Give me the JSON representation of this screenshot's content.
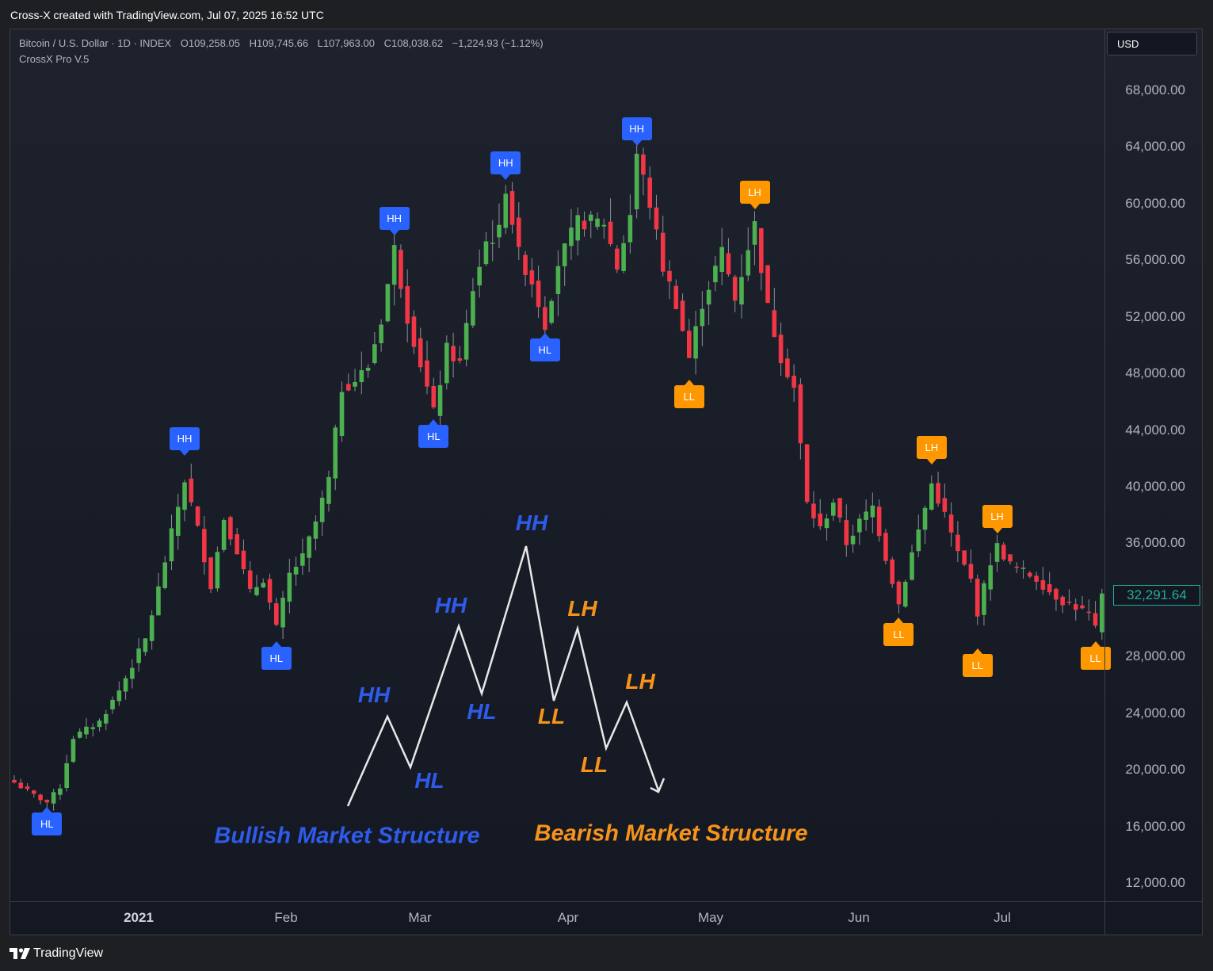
{
  "header": {
    "created_text": "Cross-X created with TradingView.com, Jul 07, 2025 16:52 UTC"
  },
  "legend": {
    "symbol": "Bitcoin / U.S. Dollar · 1D · INDEX",
    "open": "O109,258.05",
    "high": "H109,745.66",
    "low": "L107,963.00",
    "close": "C108,038.62",
    "change": "−1,224.93 (−1.12%)",
    "indicator": "CrossX Pro V.5"
  },
  "price_axis": {
    "currency_button": "USD",
    "last_price": "32,291.64",
    "ticks": [
      "68,000.00",
      "64,000.00",
      "60,000.00",
      "56,000.00",
      "52,000.00",
      "48,000.00",
      "44,000.00",
      "40,000.00",
      "36,000.00",
      "28,000.00",
      "24,000.00",
      "20,000.00",
      "16,000.00",
      "12,000.00"
    ],
    "tick_values": [
      68000,
      64000,
      60000,
      56000,
      52000,
      48000,
      44000,
      40000,
      36000,
      28000,
      24000,
      20000,
      16000,
      12000
    ]
  },
  "time_axis": {
    "labels": [
      "2021",
      "Feb",
      "Mar",
      "Apr",
      "May",
      "Jun",
      "Jul"
    ]
  },
  "markers": [
    {
      "label": "HL",
      "color": "blue",
      "dir": "up",
      "bar": 5,
      "price": 17600
    },
    {
      "label": "HH",
      "color": "blue",
      "dir": "down",
      "bar": 26,
      "price": 41900
    },
    {
      "label": "HL",
      "color": "blue",
      "dir": "up",
      "bar": 40,
      "price": 29300
    },
    {
      "label": "HH",
      "color": "blue",
      "dir": "down",
      "bar": 58,
      "price": 57500
    },
    {
      "label": "HL",
      "color": "blue",
      "dir": "up",
      "bar": 64,
      "price": 45000
    },
    {
      "label": "HH",
      "color": "blue",
      "dir": "down",
      "bar": 75,
      "price": 61400
    },
    {
      "label": "HL",
      "color": "blue",
      "dir": "up",
      "bar": 81,
      "price": 51100
    },
    {
      "label": "HH",
      "color": "blue",
      "dir": "down",
      "bar": 95,
      "price": 63800
    },
    {
      "label": "LH",
      "color": "orange",
      "dir": "down",
      "bar": 113,
      "price": 59300
    },
    {
      "label": "LL",
      "color": "orange",
      "dir": "up",
      "bar": 103,
      "price": 47800
    },
    {
      "label": "LH",
      "color": "orange",
      "dir": "down",
      "bar": 140,
      "price": 41300
    },
    {
      "label": "LL",
      "color": "orange",
      "dir": "up",
      "bar": 135,
      "price": 31000
    },
    {
      "label": "LH",
      "color": "orange",
      "dir": "down",
      "bar": 150,
      "price": 36400
    },
    {
      "label": "LL",
      "color": "orange",
      "dir": "up",
      "bar": 147,
      "price": 28800
    },
    {
      "label": "LL",
      "color": "orange",
      "dir": "up",
      "bar": 165,
      "price": 29300
    }
  ],
  "diagram": {
    "bullish": {
      "title": "Bullish Market Structure",
      "labels": [
        "HH",
        "HL",
        "HH",
        "HL",
        "HH"
      ]
    },
    "bearish": {
      "title": "Bearish Market Structure",
      "labels": [
        "LH",
        "LL",
        "LH",
        "LL"
      ]
    }
  },
  "chart_data": {
    "type": "candlestick",
    "x_labels": [
      "2021",
      "Feb",
      "Mar",
      "Apr",
      "May",
      "Jun",
      "Jul"
    ],
    "ylim": [
      12000,
      68000
    ],
    "close_path": [
      [
        0,
        19100
      ],
      [
        3,
        18200
      ],
      [
        5,
        17700
      ],
      [
        7,
        18800
      ],
      [
        9,
        22300
      ],
      [
        13,
        23400
      ],
      [
        16,
        25600
      ],
      [
        20,
        29200
      ],
      [
        22,
        32800
      ],
      [
        24,
        36700
      ],
      [
        26,
        40500
      ],
      [
        28,
        37000
      ],
      [
        30,
        33000
      ],
      [
        32,
        37800
      ],
      [
        34,
        35500
      ],
      [
        36,
        32500
      ],
      [
        38,
        33500
      ],
      [
        40,
        30000
      ],
      [
        42,
        33800
      ],
      [
        44,
        35000
      ],
      [
        46,
        37500
      ],
      [
        48,
        40500
      ],
      [
        50,
        47000
      ],
      [
        52,
        47500
      ],
      [
        54,
        48500
      ],
      [
        56,
        51800
      ],
      [
        58,
        56800
      ],
      [
        60,
        52000
      ],
      [
        62,
        48700
      ],
      [
        64,
        45200
      ],
      [
        66,
        49700
      ],
      [
        68,
        48700
      ],
      [
        70,
        54000
      ],
      [
        72,
        57300
      ],
      [
        74,
        58000
      ],
      [
        75,
        61200
      ],
      [
        77,
        56400
      ],
      [
        79,
        54500
      ],
      [
        81,
        51500
      ],
      [
        83,
        55800
      ],
      [
        86,
        58700
      ],
      [
        90,
        58700
      ],
      [
        92,
        55500
      ],
      [
        94,
        59300
      ],
      [
        95,
        63500
      ],
      [
        97,
        60000
      ],
      [
        99,
        55500
      ],
      [
        101,
        53000
      ],
      [
        103,
        49100
      ],
      [
        105,
        53000
      ],
      [
        108,
        56600
      ],
      [
        110,
        53200
      ],
      [
        112,
        57000
      ],
      [
        113,
        58500
      ],
      [
        115,
        52600
      ],
      [
        117,
        49200
      ],
      [
        119,
        47000
      ],
      [
        121,
        38800
      ],
      [
        123,
        37000
      ],
      [
        125,
        39000
      ],
      [
        127,
        36000
      ],
      [
        129,
        37500
      ],
      [
        131,
        38600
      ],
      [
        133,
        35000
      ],
      [
        135,
        31700
      ],
      [
        137,
        35300
      ],
      [
        139,
        38500
      ],
      [
        140,
        40200
      ],
      [
        142,
        38000
      ],
      [
        144,
        35300
      ],
      [
        146,
        33400
      ],
      [
        147,
        31100
      ],
      [
        149,
        34700
      ],
      [
        150,
        35800
      ],
      [
        152,
        34500
      ],
      [
        154,
        34000
      ],
      [
        156,
        33500
      ],
      [
        158,
        32600
      ],
      [
        160,
        31900
      ],
      [
        162,
        31500
      ],
      [
        164,
        31000
      ],
      [
        165,
        29900
      ],
      [
        166,
        32291
      ]
    ],
    "diagram_points": {
      "bullish": [
        [
          18000,
          0
        ],
        [
          23500,
          0
        ],
        [
          20500,
          0
        ],
        [
          30000,
          0
        ],
        [
          25500,
          0
        ],
        [
          35500,
          0
        ]
      ],
      "bearish": [
        [
          35500,
          0
        ],
        [
          25000,
          0
        ],
        [
          30000,
          0
        ],
        [
          21500,
          0
        ],
        [
          24800,
          0
        ],
        [
          18500,
          0
        ]
      ]
    }
  }
}
